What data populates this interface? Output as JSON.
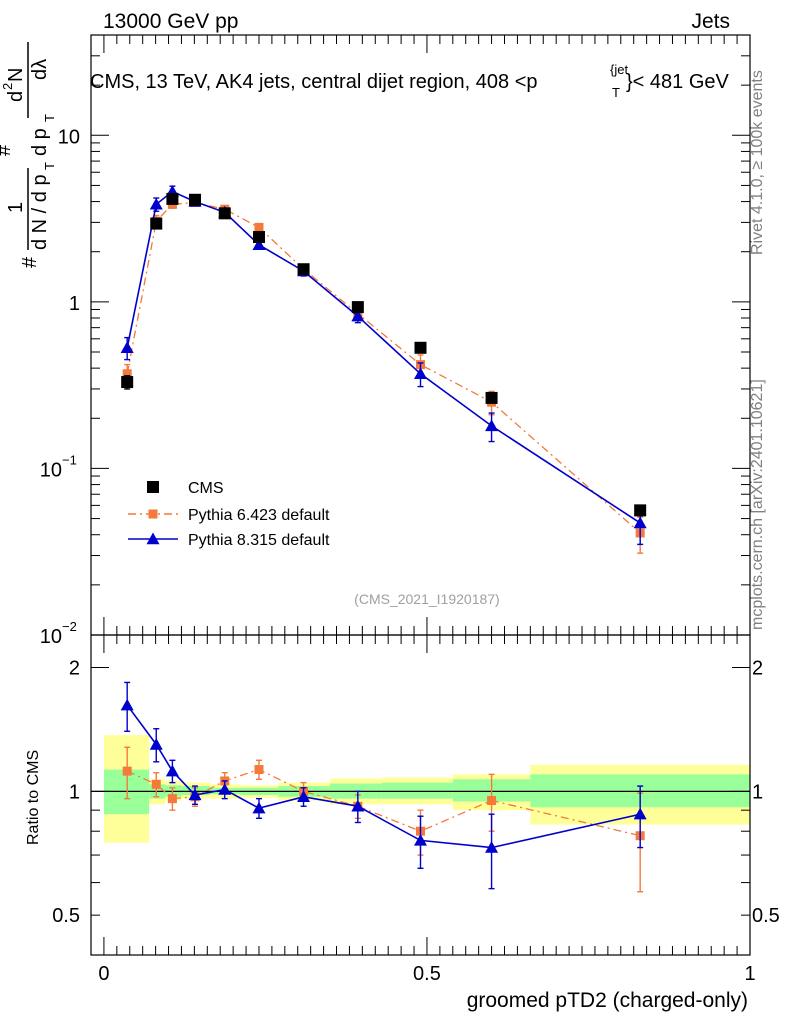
{
  "header": {
    "left": "13000 GeV pp",
    "right": "Jets"
  },
  "side": {
    "rivet": "Rivet 4.1.0, ≥ 100k events",
    "mcplots": "mcplots.cern.ch [arXiv:2401.10621]"
  },
  "chart_data": [
    {
      "type": "scatter",
      "panel": "main",
      "title": "CMS, 13 TeV, AK4 jets, central dijet region, 408 < p_T^{jet} < 481 GeV",
      "title_main": "CMS, 13 TeV, AK4 jets, central dijet region, 408 <p",
      "title_sup": "{jet",
      "title_sub": "T",
      "title_tail": "}< 481 GeV",
      "ylabel": "1/dN/dp_T # d^2N/dp_T dλ",
      "ylabel_parts": {
        "hash1": "#",
        "one": "1",
        "dn": "d N / d p",
        "t1": "T",
        "hash2": "#",
        "dp": "d p",
        "t2": "T",
        "d2n": "d",
        "two": "2",
        "n": "N",
        "dl": "dλ"
      },
      "yscale": "log",
      "ylim": [
        0.01,
        40
      ],
      "xlim": [
        -0.02,
        1.0
      ],
      "y_ticks": [
        {
          "v": 0.01,
          "base": "10",
          "exp": "−2"
        },
        {
          "v": 0.1,
          "base": "10",
          "exp": "−1"
        },
        {
          "v": 1,
          "base": "1",
          "exp": ""
        },
        {
          "v": 10,
          "base": "10",
          "exp": ""
        }
      ],
      "watermark": "(CMS_2021_I1920187)",
      "legend": [
        {
          "label": "CMS",
          "series": "cms"
        },
        {
          "label": "Pythia 6.423 default",
          "series": "py6"
        },
        {
          "label": "Pythia 8.315 default",
          "series": "py8"
        }
      ],
      "legend_position": "lower-left",
      "series": [
        {
          "key": "cms",
          "name": "CMS",
          "color": "#000000",
          "marker": "square",
          "line": "none",
          "x": [
            0.036,
            0.081,
            0.106,
            0.141,
            0.187,
            0.24,
            0.309,
            0.393,
            0.49,
            0.6,
            0.83
          ],
          "y": [
            0.33,
            2.95,
            4.15,
            4.1,
            3.4,
            2.45,
            1.57,
            0.93,
            0.53,
            0.265,
            0.056
          ],
          "err": [
            0.03,
            0.2,
            0.25,
            0.2,
            0.18,
            0.13,
            0.08,
            0.05,
            0.03,
            0.015,
            0.004
          ]
        },
        {
          "key": "py6",
          "name": "Pythia 6.423 default",
          "color": "#f4793b",
          "marker": "square",
          "line": "dashdot",
          "x": [
            0.036,
            0.081,
            0.106,
            0.141,
            0.187,
            0.24,
            0.309,
            0.393,
            0.49,
            0.6,
            0.83
          ],
          "y": [
            0.37,
            3.05,
            3.85,
            3.95,
            3.6,
            2.8,
            1.57,
            0.85,
            0.42,
            0.25,
            0.041
          ],
          "err": [
            0.05,
            0.25,
            0.2,
            0.15,
            0.15,
            0.12,
            0.1,
            0.06,
            0.06,
            0.04,
            0.01
          ]
        },
        {
          "key": "py8",
          "name": "Pythia 8.315 default",
          "color": "#0000cc",
          "marker": "triangle",
          "line": "solid",
          "x": [
            0.036,
            0.081,
            0.106,
            0.141,
            0.187,
            0.24,
            0.309,
            0.393,
            0.49,
            0.6,
            0.83
          ],
          "y": [
            0.53,
            3.85,
            4.6,
            4.0,
            3.45,
            2.2,
            1.53,
            0.82,
            0.37,
            0.18,
            0.047
          ],
          "err": [
            0.08,
            0.35,
            0.35,
            0.2,
            0.18,
            0.12,
            0.1,
            0.07,
            0.06,
            0.035,
            0.012
          ]
        }
      ]
    },
    {
      "type": "scatter",
      "panel": "ratio",
      "ylabel": "Ratio to CMS",
      "xlabel": "groomed pTD2 (charged-only)",
      "yscale": "log",
      "ylim": [
        0.4,
        2.4
      ],
      "xlim": [
        -0.02,
        1.0
      ],
      "reference_line": 1,
      "y_ticks": [
        {
          "v": 0.5,
          "label": "0.5"
        },
        {
          "v": 1,
          "label": "1"
        },
        {
          "v": 2,
          "label": "2"
        }
      ],
      "x_ticks": [
        {
          "v": 0,
          "label": "0"
        },
        {
          "v": 0.5,
          "label": "0.5"
        },
        {
          "v": 1,
          "label": "1"
        }
      ],
      "bands": [
        {
          "x0": 0.0,
          "x1": 0.07,
          "y_lo": 0.88,
          "y_hi": 1.13,
          "yy_lo": 0.75,
          "yy_hi": 1.37
        },
        {
          "x0": 0.07,
          "x1": 0.095,
          "y_lo": 0.96,
          "y_hi": 1.04,
          "yy_lo": 0.93,
          "yy_hi": 1.07
        },
        {
          "x0": 0.095,
          "x1": 0.12,
          "y_lo": 0.97,
          "y_hi": 1.035,
          "yy_lo": 0.95,
          "yy_hi": 1.06
        },
        {
          "x0": 0.12,
          "x1": 0.165,
          "y_lo": 0.98,
          "y_hi": 1.03,
          "yy_lo": 0.96,
          "yy_hi": 1.05
        },
        {
          "x0": 0.165,
          "x1": 0.21,
          "y_lo": 0.985,
          "y_hi": 1.02,
          "yy_lo": 0.96,
          "yy_hi": 1.04
        },
        {
          "x0": 0.21,
          "x1": 0.27,
          "y_lo": 0.98,
          "y_hi": 1.02,
          "yy_lo": 0.965,
          "yy_hi": 1.035
        },
        {
          "x0": 0.27,
          "x1": 0.35,
          "y_lo": 0.97,
          "y_hi": 1.03,
          "yy_lo": 0.95,
          "yy_hi": 1.05
        },
        {
          "x0": 0.35,
          "x1": 0.43,
          "y_lo": 0.96,
          "y_hi": 1.045,
          "yy_lo": 0.93,
          "yy_hi": 1.075
        },
        {
          "x0": 0.43,
          "x1": 0.54,
          "y_lo": 0.96,
          "y_hi": 1.05,
          "yy_lo": 0.93,
          "yy_hi": 1.08
        },
        {
          "x0": 0.54,
          "x1": 0.66,
          "y_lo": 0.945,
          "y_hi": 1.07,
          "yy_lo": 0.9,
          "yy_hi": 1.1
        },
        {
          "x0": 0.66,
          "x1": 1.0,
          "y_lo": 0.915,
          "y_hi": 1.1,
          "yy_lo": 0.83,
          "yy_hi": 1.16
        }
      ],
      "series": [
        {
          "key": "py6",
          "name": "Pythia 6.423 default",
          "color": "#f4793b",
          "marker": "square",
          "line": "dashdot",
          "x": [
            0.036,
            0.081,
            0.106,
            0.141,
            0.187,
            0.24,
            0.309,
            0.393,
            0.49,
            0.6,
            0.83
          ],
          "y": [
            1.12,
            1.04,
            0.96,
            0.97,
            1.06,
            1.13,
            1.0,
            0.92,
            0.8,
            0.95,
            0.78
          ],
          "err": [
            0.16,
            0.07,
            0.06,
            0.05,
            0.05,
            0.06,
            0.05,
            0.06,
            0.1,
            0.15,
            0.21
          ]
        },
        {
          "key": "py8",
          "name": "Pythia 8.315 default",
          "color": "#0000cc",
          "marker": "triangle",
          "line": "solid",
          "x": [
            0.036,
            0.081,
            0.106,
            0.141,
            0.187,
            0.24,
            0.309,
            0.393,
            0.49,
            0.6,
            0.83
          ],
          "y": [
            1.62,
            1.3,
            1.12,
            0.98,
            1.01,
            0.91,
            0.97,
            0.92,
            0.76,
            0.73,
            0.88
          ],
          "err": [
            0.22,
            0.12,
            0.07,
            0.05,
            0.05,
            0.05,
            0.05,
            0.08,
            0.11,
            0.15,
            0.15
          ]
        }
      ]
    }
  ]
}
